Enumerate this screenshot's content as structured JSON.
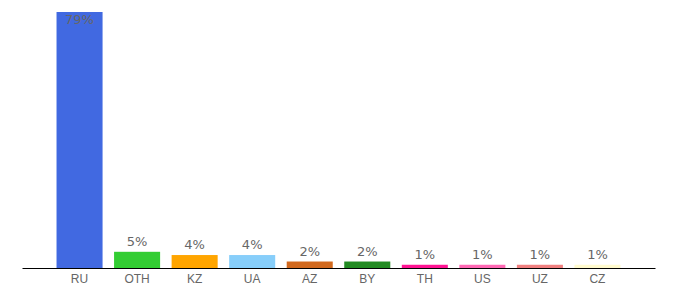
{
  "chart_data": {
    "type": "bar",
    "categories": [
      "RU",
      "OTH",
      "KZ",
      "UA",
      "AZ",
      "BY",
      "TH",
      "US",
      "UZ",
      "CZ"
    ],
    "values": [
      79,
      5,
      4,
      4,
      2,
      2,
      1,
      1,
      1,
      1
    ],
    "value_labels": [
      "79%",
      "5%",
      "4%",
      "4%",
      "2%",
      "2%",
      "1%",
      "1%",
      "1%",
      "1%"
    ],
    "colors": [
      "#4169e1",
      "#32cd32",
      "#ffa500",
      "#87cefa",
      "#d2691e",
      "#228b22",
      "#ff1493",
      "#ff69b4",
      "#f08080",
      "#fffacd"
    ],
    "ylim": [
      0,
      79
    ],
    "data_labels": true,
    "tick_labels": "x"
  }
}
